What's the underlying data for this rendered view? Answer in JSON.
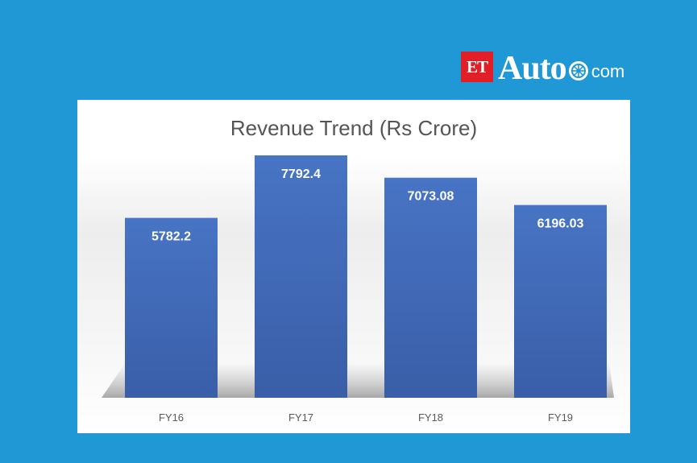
{
  "logo": {
    "et": "ET",
    "auto": "Auto",
    "com": "com",
    "wheel_icon": "wheel-icon",
    "colors": {
      "et_box": "#e21f26",
      "text": "#ffffff"
    }
  },
  "background_color": "#1f98d5",
  "chart_data": {
    "type": "bar",
    "title": "Revenue Trend (Rs Crore)",
    "categories": [
      "FY16",
      "FY17",
      "FY18",
      "FY19"
    ],
    "values": [
      5782.2,
      7792.4,
      7073.08,
      6196.03
    ],
    "data_labels": [
      "5782.2",
      "7792.4",
      "7073.08",
      "6196.03"
    ],
    "xlabel": "",
    "ylabel": "",
    "ylim": [
      0,
      8800
    ],
    "grid": false,
    "legend": "none",
    "bar_color": "#4472c4"
  }
}
